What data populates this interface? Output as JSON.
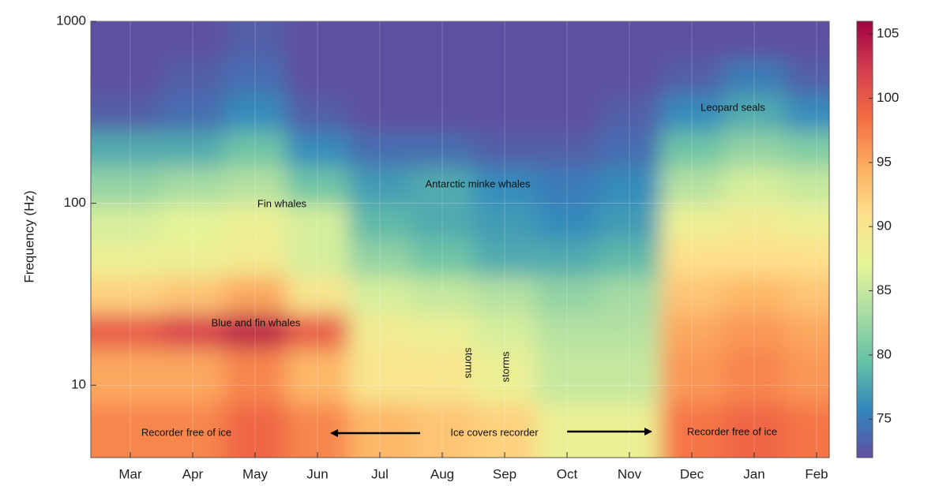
{
  "chart_data": {
    "type": "heatmap",
    "ylabel": "Frequency (Hz)",
    "categories": [
      "Mar",
      "Apr",
      "May",
      "Jun",
      "Jul",
      "Aug",
      "Sep",
      "Oct",
      "Nov",
      "Dec",
      "Jan",
      "Feb"
    ],
    "y_bins": [
      4,
      8,
      16,
      25,
      40,
      63,
      100,
      160,
      250,
      400,
      630,
      1000
    ],
    "values": [
      [
        97,
        97,
        99,
        97,
        94,
        93,
        92,
        88,
        88,
        98,
        99,
        98
      ],
      [
        95,
        95,
        97,
        94,
        90,
        90,
        88,
        85,
        85,
        96,
        97,
        96
      ],
      [
        100,
        102,
        104,
        100,
        89,
        88,
        86,
        84,
        84,
        95,
        96,
        95
      ],
      [
        92,
        93,
        95,
        90,
        86,
        85,
        84,
        82,
        83,
        93,
        94,
        93
      ],
      [
        88,
        88,
        89,
        86,
        82,
        80,
        78,
        78,
        79,
        91,
        91,
        91
      ],
      [
        86,
        87,
        88,
        86,
        79,
        78,
        77,
        76,
        77,
        88,
        89,
        88
      ],
      [
        82,
        83,
        84,
        80,
        77,
        78,
        76,
        75,
        76,
        84,
        86,
        85
      ],
      [
        78,
        78,
        80,
        76,
        74,
        74,
        73,
        73,
        74,
        80,
        82,
        81
      ],
      [
        73,
        74,
        76,
        73,
        72,
        72,
        72,
        72,
        73,
        76,
        78,
        76
      ],
      [
        72,
        73,
        74,
        72,
        72,
        72,
        72,
        72,
        72,
        73,
        75,
        73
      ],
      [
        72,
        72,
        73,
        72,
        72,
        72,
        72,
        72,
        72,
        72,
        72,
        72
      ]
    ],
    "ylim": [
      4,
      1000
    ],
    "yticks": [
      10,
      100,
      1000
    ],
    "log_y": true,
    "grid": true,
    "clim": [
      72,
      106
    ],
    "cticks": [
      75,
      80,
      85,
      90,
      95,
      100,
      105
    ],
    "colormap": [
      "#5e4fa2",
      "#3288bd",
      "#66c2a5",
      "#abdda4",
      "#e6f598",
      "#fee08b",
      "#fdae61",
      "#f46d43",
      "#d53e4f",
      "#9e0142"
    ],
    "annotations": [
      "Leopard seals",
      "Antarctic minke whales",
      "Fin whales",
      "Blue and fin whales",
      "storms",
      "storms",
      "Recorder free of ice",
      "Ice covers recorder",
      "Recorder free of ice"
    ]
  }
}
